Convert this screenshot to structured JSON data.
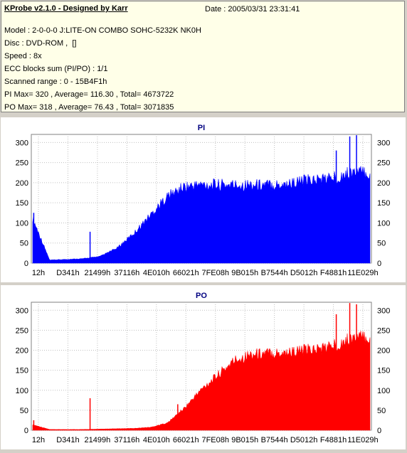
{
  "header": {
    "app_title": "KProbe v2.1.0 - Designed by Karr",
    "date": "Date : 2005/03/31 23:31:41",
    "lines": [
      "Model : 2-0-0-0 J:LITE-ON COMBO SOHC-5232K NK0H",
      "Disc : DVD-ROM ,  []",
      "Speed : 8x",
      "ECC blocks sum (PI/PO) : 1/1",
      "Scanned range : 0 - 15B4F1h",
      "PI Max= 320 , Average= 116.30 , Total= 4673722",
      "PO Max= 318 , Average= 76.43 , Total= 3071835"
    ]
  },
  "chart_data": [
    {
      "type": "bar",
      "title": "PI",
      "color": "#0000ff",
      "ylim": [
        0,
        320
      ],
      "yticks": [
        0,
        50,
        100,
        150,
        200,
        250,
        300
      ],
      "xtick_labels": [
        "12h",
        "D341h",
        "21499h",
        "37116h",
        "4E010h",
        "66021h",
        "7FE08h",
        "9B015h",
        "B7544h",
        "D5012h",
        "F4881h",
        "11E029h"
      ],
      "x": [
        0,
        0.05,
        0.1,
        0.15,
        0.2,
        0.25,
        0.3,
        0.35,
        0.4,
        0.45,
        0.5,
        0.55,
        0.6,
        0.65,
        0.7,
        0.75,
        0.8,
        0.85,
        0.9,
        0.95,
        1.0
      ],
      "values": [
        120,
        8,
        10,
        12,
        18,
        40,
        80,
        130,
        180,
        205,
        210,
        210,
        210,
        210,
        210,
        212,
        220,
        225,
        230,
        245,
        240
      ],
      "spikes": [
        [
          0.003,
          125
        ],
        [
          0.17,
          78
        ],
        [
          0.43,
          160
        ],
        [
          0.49,
          195
        ],
        [
          0.9,
          280
        ],
        [
          0.94,
          315
        ],
        [
          0.96,
          318
        ]
      ]
    },
    {
      "type": "bar",
      "title": "PO",
      "color": "#ff0000",
      "ylim": [
        0,
        320
      ],
      "yticks": [
        0,
        50,
        100,
        150,
        200,
        250,
        300
      ],
      "xtick_labels": [
        "12h",
        "D341h",
        "21499h",
        "37116h",
        "4E010h",
        "66021h",
        "7FE08h",
        "9B015h",
        "B7544h",
        "D5012h",
        "F4881h",
        "11E029h"
      ],
      "x": [
        0,
        0.05,
        0.1,
        0.15,
        0.2,
        0.25,
        0.3,
        0.35,
        0.4,
        0.45,
        0.5,
        0.55,
        0.6,
        0.65,
        0.7,
        0.75,
        0.8,
        0.85,
        0.9,
        0.95,
        1.0
      ],
      "values": [
        15,
        2,
        2,
        2,
        3,
        4,
        5,
        8,
        20,
        60,
        110,
        150,
        190,
        205,
        208,
        210,
        215,
        220,
        230,
        250,
        250
      ],
      "spikes": [
        [
          0.003,
          25
        ],
        [
          0.17,
          80
        ],
        [
          0.43,
          65
        ],
        [
          0.9,
          290
        ],
        [
          0.94,
          318
        ],
        [
          0.96,
          315
        ]
      ]
    }
  ]
}
